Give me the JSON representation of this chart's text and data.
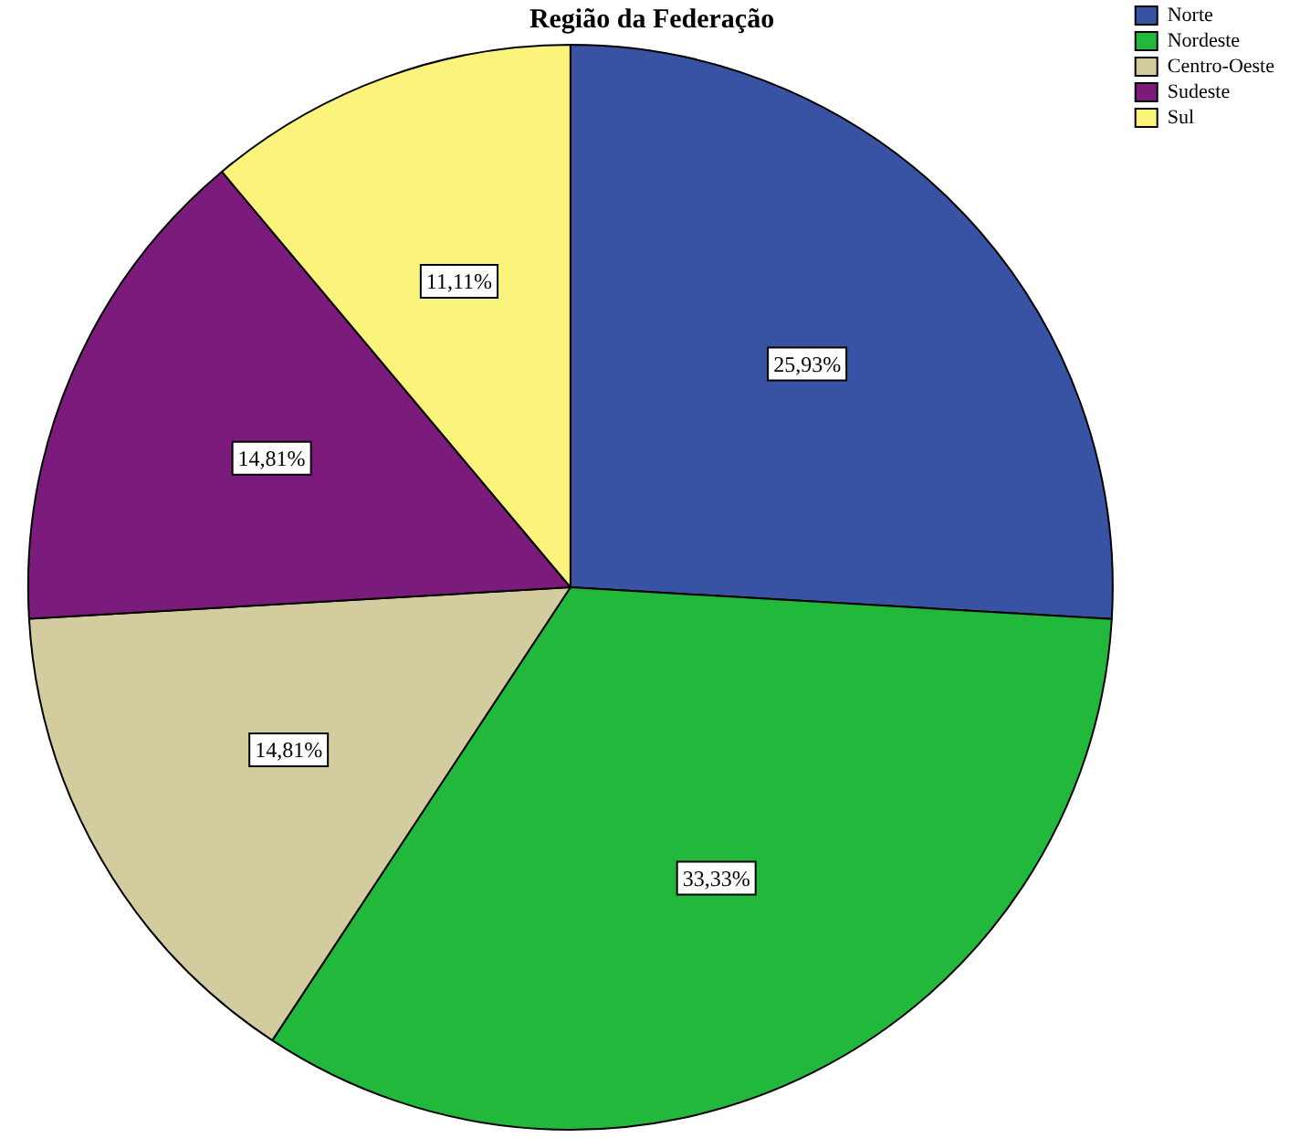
{
  "chart_data": {
    "type": "pie",
    "title": "Região da Federação",
    "categories": [
      "Norte",
      "Nordeste",
      "Centro-Oeste",
      "Sudeste",
      "Sul"
    ],
    "values": [
      25.93,
      33.33,
      14.81,
      14.81,
      11.11
    ],
    "value_labels": [
      "25,93%",
      "33,33%",
      "14,81%",
      "14,81%",
      "11,11%"
    ],
    "colors": [
      "#3953a4",
      "#22b83b",
      "#d3cc9f",
      "#7b1c7c",
      "#fbf47c"
    ],
    "legend": "top right"
  }
}
